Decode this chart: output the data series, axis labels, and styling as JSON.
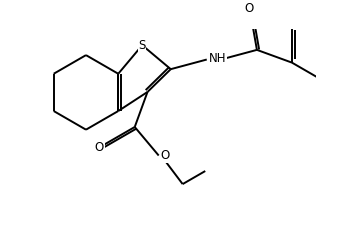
{
  "bg": "#ffffff",
  "lc": "#000000",
  "lw": 1.4,
  "figsize": [
    3.58,
    2.42
  ],
  "dpi": 100,
  "xlim": [
    -0.3,
    6.8
  ],
  "ylim": [
    -0.8,
    4.2
  ]
}
